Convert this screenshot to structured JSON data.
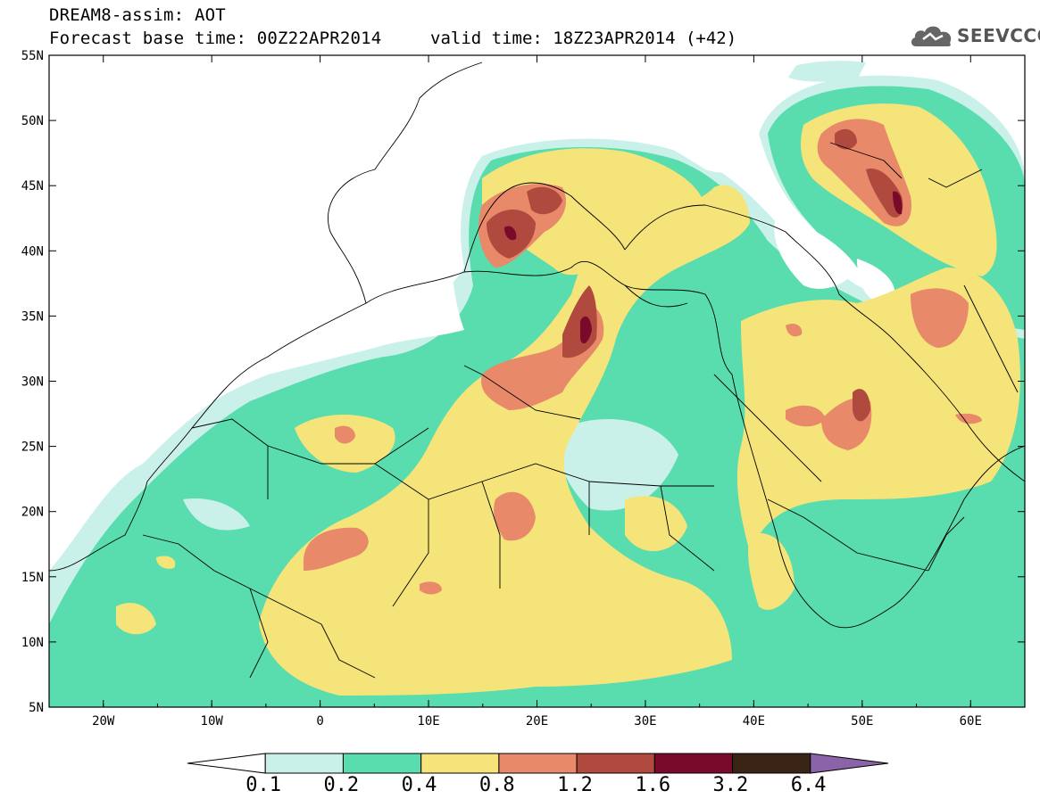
{
  "title": {
    "line1": "DREAM8-assim: AOT",
    "line2": "Forecast base time: 00Z22APR2014",
    "valid": "valid time: 18Z23APR2014 (+42)"
  },
  "logo": {
    "text": "SEEVCCC",
    "icon": "cloud-icon"
  },
  "axes": {
    "lat_labels": [
      "55N",
      "50N",
      "45N",
      "40N",
      "35N",
      "30N",
      "25N",
      "20N",
      "15N",
      "10N",
      "5N"
    ],
    "lon_labels": [
      "20W",
      "10W",
      "0",
      "10E",
      "20E",
      "30E",
      "40E",
      "50E",
      "60E"
    ],
    "lat_range": [
      5,
      55
    ],
    "lon_range": [
      -25,
      65
    ]
  },
  "legend": {
    "levels": [
      "0.1",
      "0.2",
      "0.4",
      "0.8",
      "1.2",
      "1.6",
      "3.2",
      "6.4"
    ],
    "colors": [
      "#c9f1ea",
      "#59dcae",
      "#f5e47a",
      "#e8896a",
      "#b14a3e",
      "#7a0a2a",
      "#3a2415",
      "#8a63a8"
    ],
    "under_color": "#ffffff"
  }
}
